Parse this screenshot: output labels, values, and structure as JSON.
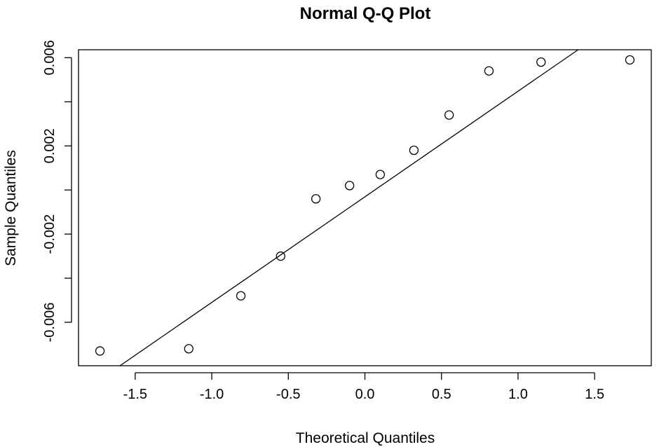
{
  "chart_data": {
    "type": "scatter",
    "title": "Normal Q-Q Plot",
    "xlabel": "Theoretical Quantiles",
    "ylabel": "Sample Quantiles",
    "xlim": [
      -1.87,
      1.87
    ],
    "ylim": [
      -0.00797,
      0.00636
    ],
    "x_ticks": [
      -1.5,
      -1.0,
      -0.5,
      0.0,
      0.5,
      1.0,
      1.5
    ],
    "x_tick_labels": [
      "-1.5",
      "-1.0",
      "-0.5",
      "0.0",
      "0.5",
      "1.0",
      "1.5"
    ],
    "y_ticks": [
      -0.006,
      -0.004,
      -0.002,
      0.0,
      0.002,
      0.004,
      0.006
    ],
    "y_tick_labels": [
      "-0.006",
      "",
      "-0.002",
      "",
      "0.002",
      "",
      "0.006"
    ],
    "points": [
      {
        "x": -1.73,
        "y": -0.0073
      },
      {
        "x": -1.15,
        "y": -0.0072
      },
      {
        "x": -0.81,
        "y": -0.0048
      },
      {
        "x": -0.55,
        "y": -0.003
      },
      {
        "x": -0.32,
        "y": -0.0004
      },
      {
        "x": -0.1,
        "y": 0.0002
      },
      {
        "x": 0.1,
        "y": 0.0007
      },
      {
        "x": 0.32,
        "y": 0.0018
      },
      {
        "x": 0.55,
        "y": 0.0034
      },
      {
        "x": 0.81,
        "y": 0.0054
      },
      {
        "x": 1.15,
        "y": 0.0058
      },
      {
        "x": 1.73,
        "y": 0.0059
      }
    ],
    "reference_line": {
      "intercept": -0.00031,
      "slope": 0.00479
    },
    "grid": false,
    "legend": "none"
  }
}
